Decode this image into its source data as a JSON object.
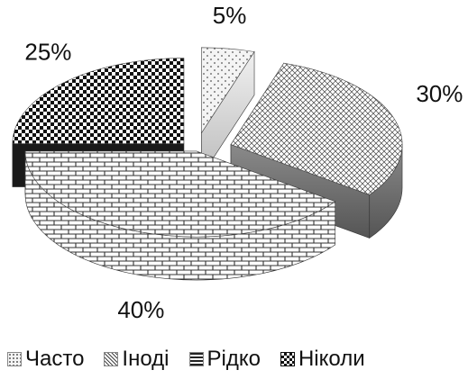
{
  "chart_data": {
    "type": "pie",
    "variant": "3d-exploded",
    "categories": [
      "Часто",
      "Іноді",
      "Рідко",
      "Ніколи"
    ],
    "values": [
      5,
      30,
      40,
      25
    ],
    "labels": [
      "5%",
      "30%",
      "40%",
      "25%"
    ],
    "legend": {
      "placement": "bottom",
      "items": [
        "Часто",
        "Іноді",
        "Рідко",
        "Ніколи"
      ]
    },
    "colors": [
      "#cccccc",
      "#9a9a9a",
      "#808080",
      "#222222"
    ]
  }
}
